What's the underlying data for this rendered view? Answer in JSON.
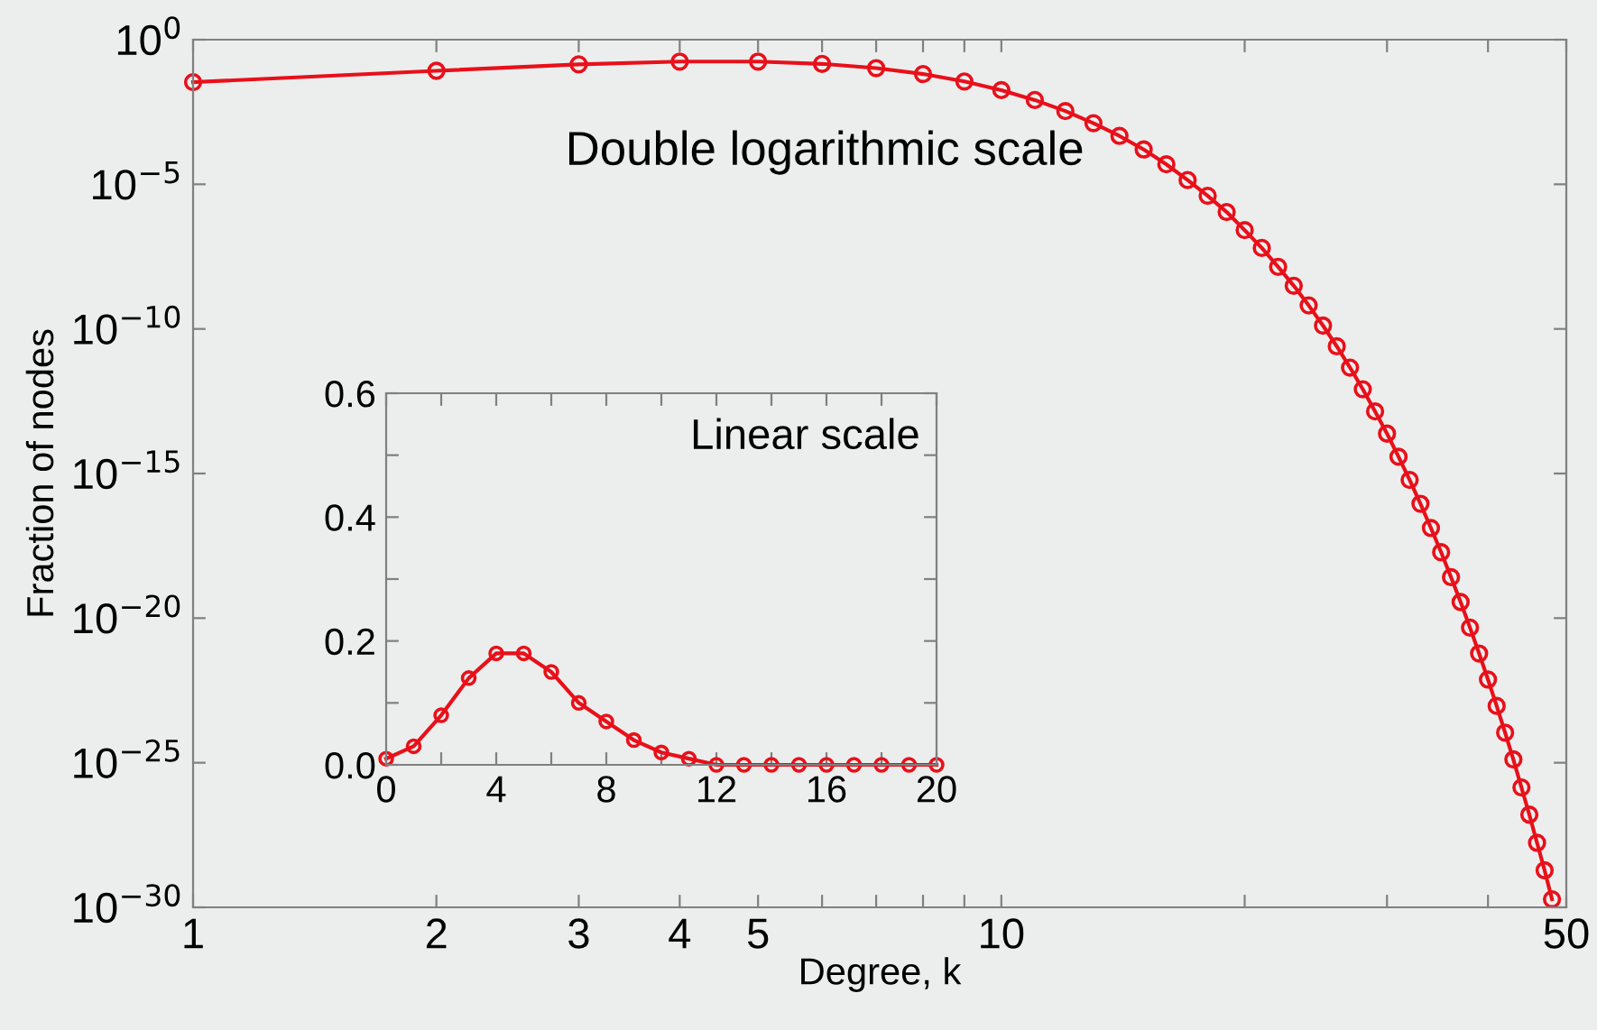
{
  "chart_data": [
    {
      "type": "line",
      "xlabel": "Degree, k",
      "ylabel": "Fraction of nodes",
      "annotations": [
        "Double logarithmic scale"
      ],
      "log": "xy",
      "marker": "circle",
      "line_style": "solid",
      "grid": false,
      "legend": false,
      "x": [
        1,
        2,
        3,
        4,
        5,
        6,
        7,
        8,
        9,
        10,
        11,
        12,
        13,
        14,
        15,
        16,
        17,
        18,
        19,
        20,
        21,
        22,
        23,
        24,
        25,
        26,
        27,
        28,
        29,
        30,
        31,
        32,
        33,
        34,
        35,
        36,
        37,
        38,
        39,
        40,
        41,
        42,
        43,
        44,
        45,
        46,
        47,
        48
      ],
      "series": [
        {
          "color": "#e8101a",
          "values": [
            0.034,
            0.084,
            0.14,
            0.175,
            0.175,
            0.146,
            0.104,
            0.065,
            0.036,
            0.018,
            0.0082,
            0.0034,
            0.0013,
            0.00047,
            0.00016,
            4.9e-05,
            1.4e-05,
            4e-06,
            1.1e-06,
            2.6e-07,
            6.3e-08,
            1.4e-08,
            3.1e-09,
            6.5e-10,
            1.3e-10,
            2.5e-11,
            4.6e-12,
            8.2e-13,
            1.4e-13,
            2.4e-14,
            3.8e-15,
            6e-16,
            9e-17,
            1.3e-17,
            1.9e-18,
            2.6e-19,
            3.6e-20,
            4.7e-21,
            6e-22,
            7.5e-23,
            9.2e-24,
            1.1e-24,
            1.3e-25,
            1.4e-26,
            1.6e-27,
            1.7e-28,
            1.9e-29,
            1.9e-30
          ]
        }
      ],
      "xlim": [
        1,
        50
      ],
      "xticks": [
        1,
        2,
        3,
        4,
        5,
        {
          "value": 6,
          "label": null
        },
        {
          "value": 7,
          "label": null
        },
        {
          "value": 8,
          "label": null
        },
        {
          "value": 9,
          "label": null
        },
        10,
        {
          "value": 20,
          "label": null
        },
        {
          "value": 30,
          "label": null
        },
        {
          "value": 40,
          "label": null
        },
        50
      ],
      "ylim": [
        1e-30,
        1
      ],
      "yticks": [
        {
          "value": 1,
          "label": "10$^{0}$"
        },
        {
          "value": 1e-05,
          "label": "10$^{−5}$"
        },
        {
          "value": 1e-10,
          "label": "10$^{−10}$"
        },
        {
          "value": 1e-15,
          "label": "10$^{−15}$"
        },
        {
          "value": 1e-20,
          "label": "10$^{−20}$"
        },
        {
          "value": 1e-25,
          "label": "10$^{−25}$"
        },
        {
          "value": 1e-30,
          "label": "10$^{−30}$"
        }
      ]
    },
    {
      "type": "line",
      "annotations": [
        "Linear scale"
      ],
      "marker": "circle",
      "line_style": "solid",
      "grid": false,
      "legend": false,
      "x": [
        0,
        1,
        2,
        3,
        4,
        5,
        6,
        7,
        8,
        9,
        10,
        11,
        12,
        13,
        14,
        15,
        16,
        17,
        18,
        19,
        20
      ],
      "series": [
        {
          "color": "#e8101a",
          "values": [
            0.01,
            0.03,
            0.08,
            0.14,
            0.18,
            0.18,
            0.15,
            0.1,
            0.07,
            0.04,
            0.02,
            0.01,
            0,
            0,
            0,
            0,
            0,
            0,
            0,
            0,
            0
          ]
        }
      ],
      "xlim": [
        0,
        20
      ],
      "xticks": [
        0,
        {
          "value": 2,
          "label": null
        },
        4,
        {
          "value": 6,
          "label": null
        },
        8,
        {
          "value": 10,
          "label": null
        },
        12,
        {
          "value": 14,
          "label": null
        },
        16,
        {
          "value": 18,
          "label": null
        },
        20
      ],
      "ylim": [
        0,
        0.6
      ],
      "yticks": [
        {
          "value": 0,
          "label": "0.0"
        },
        {
          "value": 0.1,
          "label": null
        },
        0.2,
        {
          "value": 0.3,
          "label": null
        },
        0.4,
        {
          "value": 0.5,
          "label": null
        },
        0.6
      ]
    }
  ]
}
